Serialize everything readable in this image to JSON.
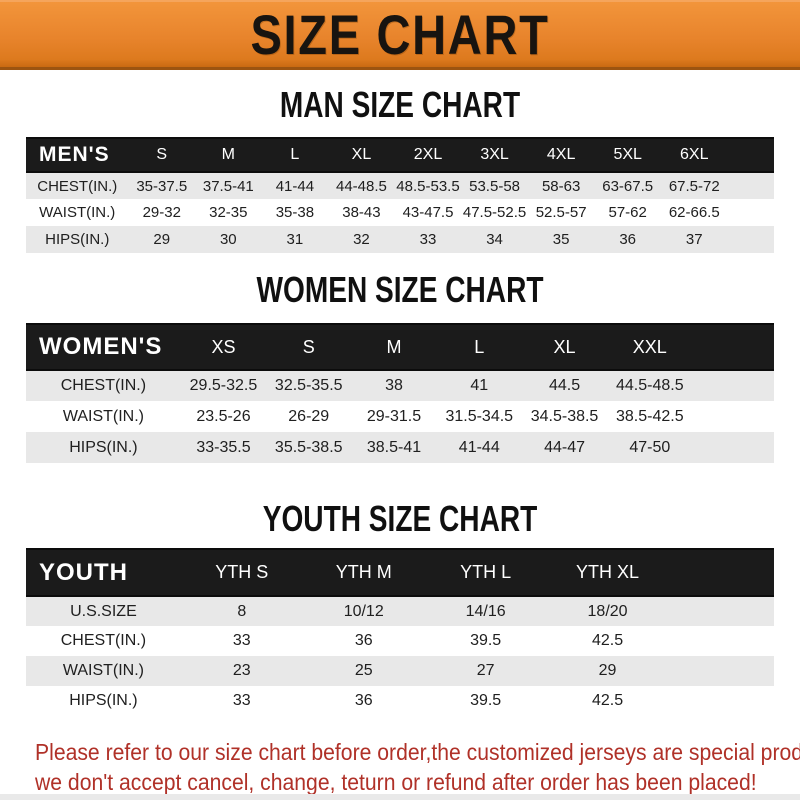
{
  "banner": {
    "title": "SIZE CHART"
  },
  "sections": {
    "men": {
      "title": "MAN SIZE CHART",
      "header_label": "MEN'S",
      "sizes": [
        "S",
        "M",
        "L",
        "XL",
        "2XL",
        "3XL",
        "4XL",
        "5XL",
        "6XL"
      ],
      "rows": [
        {
          "label": "CHEST(IN.)",
          "values": [
            "35-37.5",
            "37.5-41",
            "41-44",
            "44-48.5",
            "48.5-53.5",
            "53.5-58",
            "58-63",
            "63-67.5",
            "67.5-72"
          ]
        },
        {
          "label": "WAIST(IN.)",
          "values": [
            "29-32",
            "32-35",
            "35-38",
            "38-43",
            "43-47.5",
            "47.5-52.5",
            "52.5-57",
            "57-62",
            "62-66.5"
          ]
        },
        {
          "label": "HIPS(IN.)",
          "values": [
            "29",
            "30",
            "31",
            "32",
            "33",
            "34",
            "35",
            "36",
            "37"
          ]
        }
      ]
    },
    "women": {
      "title": "WOMEN SIZE CHART",
      "header_label": "WOMEN'S",
      "sizes": [
        "XS",
        "S",
        "M",
        "L",
        "XL",
        "XXL"
      ],
      "rows": [
        {
          "label": "CHEST(IN.)",
          "values": [
            "29.5-32.5",
            "32.5-35.5",
            "38",
            "41",
            "44.5",
            "44.5-48.5"
          ]
        },
        {
          "label": "WAIST(IN.)",
          "values": [
            "23.5-26",
            "26-29",
            "29-31.5",
            "31.5-34.5",
            "34.5-38.5",
            "38.5-42.5"
          ]
        },
        {
          "label": "HIPS(IN.)",
          "values": [
            "33-35.5",
            "35.5-38.5",
            "38.5-41",
            "41-44",
            "44-47",
            "47-50"
          ]
        }
      ]
    },
    "youth": {
      "title": "YOUTH SIZE CHART",
      "header_label": "YOUTH",
      "sizes": [
        "YTH S",
        "YTH M",
        "YTH L",
        "YTH XL"
      ],
      "rows": [
        {
          "label": "U.S.SIZE",
          "values": [
            "8",
            "10/12",
            "14/16",
            "18/20"
          ]
        },
        {
          "label": "CHEST(IN.)",
          "values": [
            "33",
            "36",
            "39.5",
            "42.5"
          ]
        },
        {
          "label": "WAIST(IN.)",
          "values": [
            "23",
            "25",
            "27",
            "29"
          ]
        },
        {
          "label": "HIPS(IN.)",
          "values": [
            "33",
            "36",
            "39.5",
            "42.5"
          ]
        }
      ]
    }
  },
  "disclaimer": {
    "line1": "Please refer to our size chart before order,the customized jerseys are special products,",
    "line2": "we don't accept cancel, change, teturn or refund after order has been placed!"
  },
  "colors": {
    "banner_orange": "#e8842c",
    "header_bar_black": "#1b1b1b",
    "row_stripe_gray": "#e8e8e8",
    "disclaimer_red": "#b03128",
    "title_black": "#101010"
  }
}
